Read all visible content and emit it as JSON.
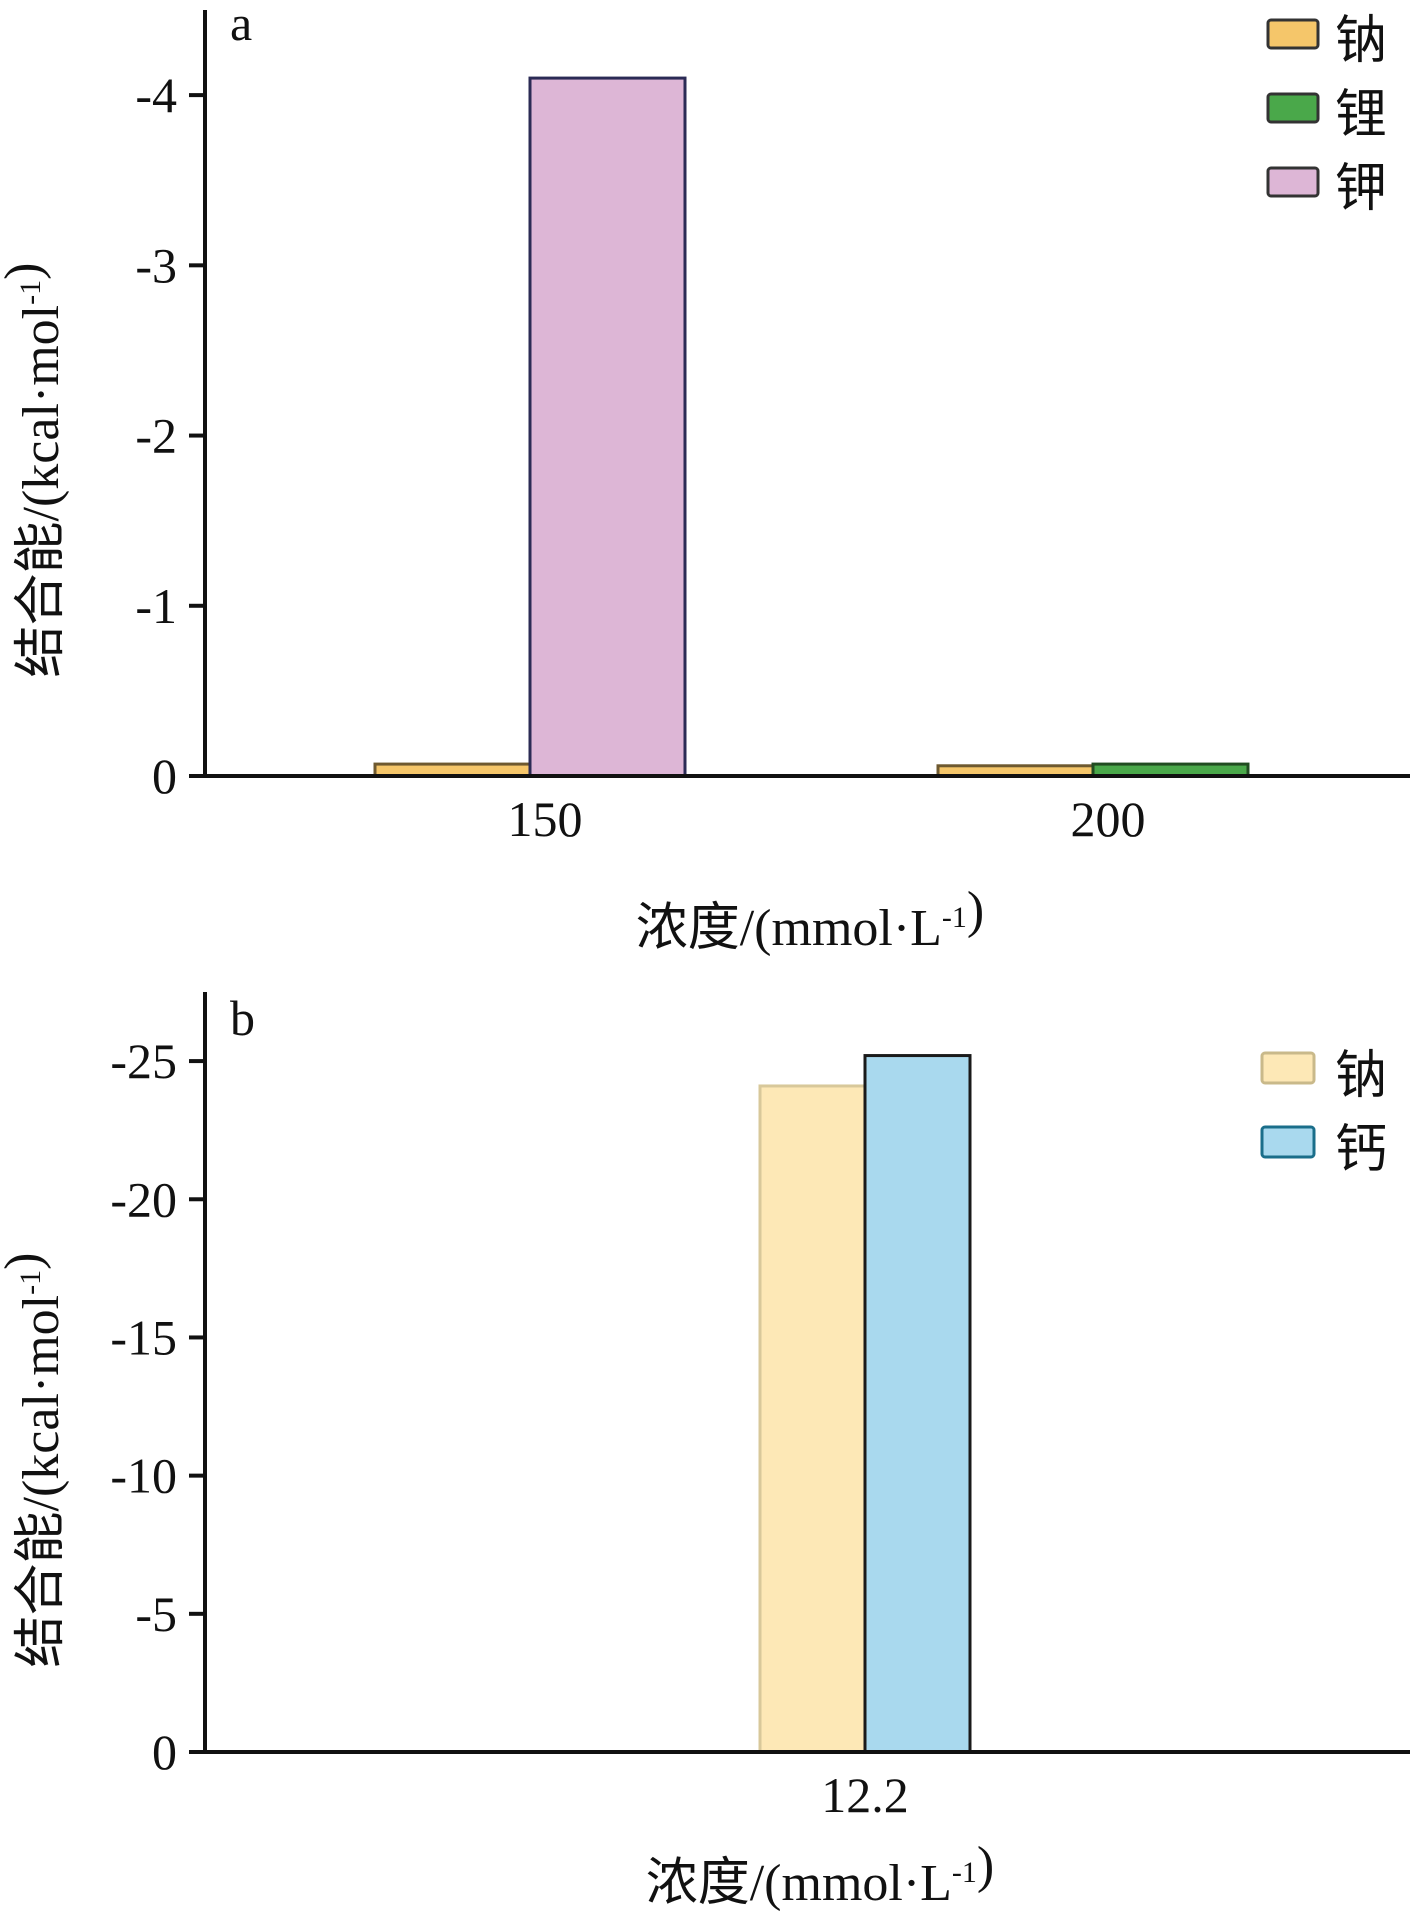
{
  "chart_data": [
    {
      "type": "bar",
      "panel": "a",
      "xlabel": "浓度/(mmol·L-1)",
      "ylabel": "结合能/(kcal·mol-1)",
      "categories": [
        "150",
        "200"
      ],
      "yticks": [
        "0",
        "-1",
        "-2",
        "-3",
        "-4"
      ],
      "ylim": [
        0,
        -4.5
      ],
      "inverted_y": true,
      "grid": false,
      "legend_position": "top-right",
      "series": [
        {
          "name": "钠",
          "color": "#f5c66a",
          "values": [
            -0.07,
            -0.06
          ]
        },
        {
          "name": "锂",
          "color": "#4aa84a",
          "values": [
            null,
            -0.07
          ]
        },
        {
          "name": "钾",
          "color": "#ddb6d6",
          "values": [
            -4.1,
            null
          ]
        }
      ]
    },
    {
      "type": "bar",
      "panel": "b",
      "xlabel": "浓度/(mmol·L-1)",
      "ylabel": "结合能/(kcal·mol-1)",
      "categories": [
        "12.2"
      ],
      "yticks": [
        "0",
        "-5",
        "-10",
        "-15",
        "-20",
        "-25"
      ],
      "ylim": [
        0,
        -27.5
      ],
      "inverted_y": true,
      "grid": false,
      "legend_position": "top-right",
      "series": [
        {
          "name": "钠",
          "color": "#fde8b6",
          "values": [
            -24.1
          ]
        },
        {
          "name": "钙",
          "color": "#a9d9ee",
          "values": [
            -25.2
          ]
        }
      ]
    }
  ]
}
